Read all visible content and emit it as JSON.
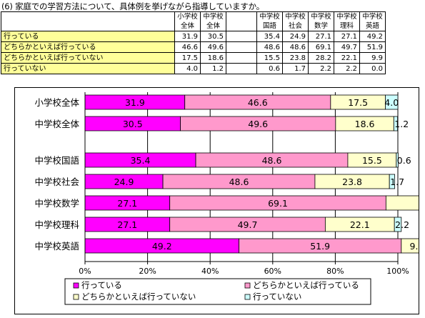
{
  "title": "(6) 家庭での学習方法について、具体例を挙げながら指導していますか。",
  "table": {
    "headers": [
      [
        "小学校",
        "全体"
      ],
      [
        "中学校",
        "全体"
      ],
      [
        "中学校",
        "国語"
      ],
      [
        "中学校",
        "社会"
      ],
      [
        "中学校",
        "数学"
      ],
      [
        "中学校",
        "理科"
      ],
      [
        "中学校",
        "英語"
      ]
    ],
    "rows": [
      {
        "label": "行っている",
        "values": [
          "31.9",
          "30.5",
          "35.4",
          "24.9",
          "27.1",
          "27.1",
          "49.2"
        ]
      },
      {
        "label": "どちらかといえば行っている",
        "values": [
          "46.6",
          "49.6",
          "48.6",
          "48.6",
          "69.1",
          "49.7",
          "51.9"
        ]
      },
      {
        "label": "どちらかといえば行っていない",
        "values": [
          "17.5",
          "18.6",
          "15.5",
          "23.8",
          "28.2",
          "22.1",
          "9.9"
        ]
      },
      {
        "label": "行っていない",
        "values": [
          "4.0",
          "1.2",
          "0.6",
          "1.7",
          "2.2",
          "2.2",
          "0.0"
        ]
      }
    ]
  },
  "chart_data": {
    "type": "bar",
    "orientation": "horizontal",
    "stacked": "percent",
    "categories": [
      "小学校全体",
      "中学校全体",
      "中学校国語",
      "中学校社会",
      "中学校数学",
      "中学校理科",
      "中学校英語"
    ],
    "gap_after_index": 1,
    "series": [
      {
        "name": "行っている",
        "color": "#ff00ff",
        "values": [
          31.9,
          30.5,
          35.4,
          24.9,
          27.1,
          27.1,
          49.2
        ]
      },
      {
        "name": "どちらかといえば行っている",
        "color": "#ff99cc",
        "values": [
          46.6,
          49.6,
          48.6,
          48.6,
          69.1,
          49.7,
          51.9
        ]
      },
      {
        "name": "どちらかといえば行っていない",
        "color": "#ffffcc",
        "values": [
          17.5,
          18.6,
          15.5,
          23.8,
          28.2,
          22.1,
          9.9
        ]
      },
      {
        "name": "行っていない",
        "color": "#ccffff",
        "values": [
          4.0,
          1.2,
          0.6,
          1.7,
          2.2,
          2.2,
          0.0
        ]
      }
    ],
    "xticks": [
      "0%",
      "20%",
      "40%",
      "60%",
      "80%",
      "100%"
    ],
    "xlim": [
      0,
      100
    ],
    "legend_position": "bottom"
  }
}
